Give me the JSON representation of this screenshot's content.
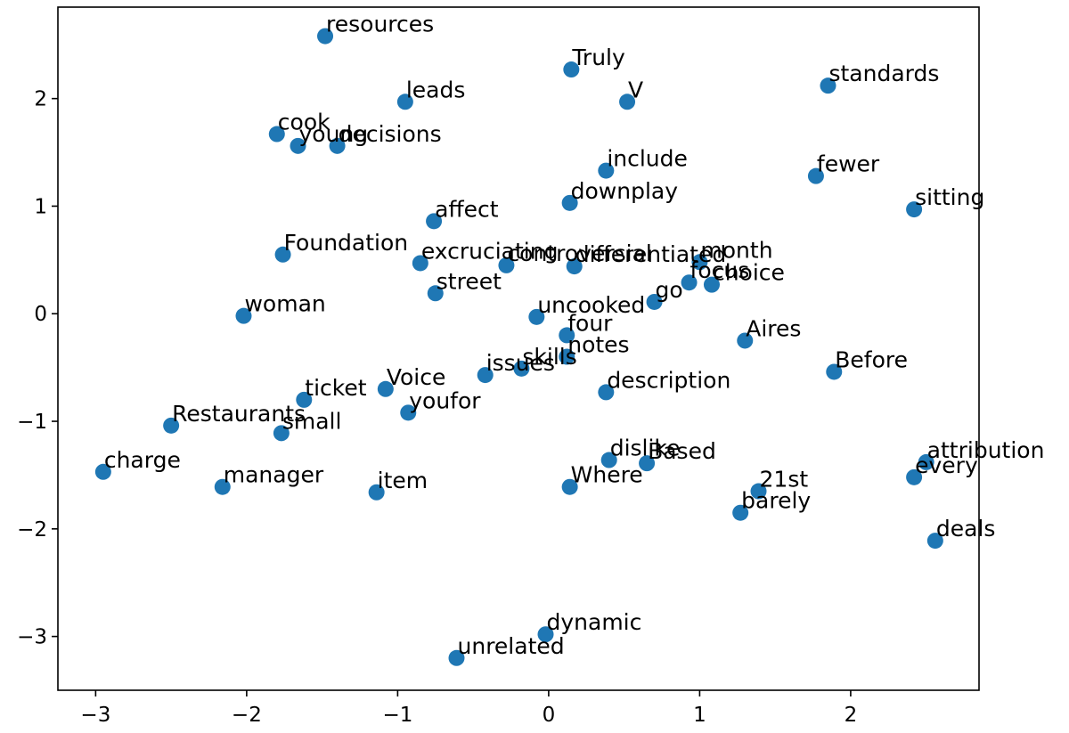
{
  "chart_data": {
    "type": "scatter",
    "title": "",
    "xlabel": "",
    "ylabel": "",
    "xlim": [
      -3.25,
      2.85
    ],
    "ylim": [
      -3.5,
      2.85
    ],
    "xticks": [
      -3,
      -2,
      -1,
      0,
      1,
      2
    ],
    "yticks": [
      2,
      1,
      0,
      -1,
      -2,
      -3
    ],
    "xtick_labels": [
      "−3",
      "−2",
      "−1",
      "0",
      "1",
      "2"
    ],
    "ytick_labels": [
      "2",
      "1",
      "0",
      "−1",
      "−2",
      "−3"
    ],
    "grid": false,
    "marker_color": "#1f77b4",
    "points": [
      {
        "label": "resources",
        "x": -1.48,
        "y": 2.58
      },
      {
        "label": "Truly",
        "x": 0.15,
        "y": 2.27
      },
      {
        "label": "standards",
        "x": 1.85,
        "y": 2.12
      },
      {
        "label": "leads",
        "x": -0.95,
        "y": 1.97
      },
      {
        "label": "V",
        "x": 0.52,
        "y": 1.97
      },
      {
        "label": "cook",
        "x": -1.8,
        "y": 1.67
      },
      {
        "label": "young",
        "x": -1.66,
        "y": 1.56
      },
      {
        "label": "decisions",
        "x": -1.4,
        "y": 1.56
      },
      {
        "label": "include",
        "x": 0.38,
        "y": 1.33
      },
      {
        "label": "fewer",
        "x": 1.77,
        "y": 1.28
      },
      {
        "label": "downplay",
        "x": 0.14,
        "y": 1.03
      },
      {
        "label": "sitting",
        "x": 2.42,
        "y": 0.97
      },
      {
        "label": "affect",
        "x": -0.76,
        "y": 0.86
      },
      {
        "label": "Foundation",
        "x": -1.76,
        "y": 0.55
      },
      {
        "label": "excruciating",
        "x": -0.85,
        "y": 0.47
      },
      {
        "label": "controversial",
        "x": -0.28,
        "y": 0.45
      },
      {
        "label": "differentiated",
        "x": 0.17,
        "y": 0.44
      },
      {
        "label": "month",
        "x": 1.0,
        "y": 0.48
      },
      {
        "label": "focus",
        "x": 0.93,
        "y": 0.29
      },
      {
        "label": "choice",
        "x": 1.08,
        "y": 0.27
      },
      {
        "label": "street",
        "x": -0.75,
        "y": 0.19
      },
      {
        "label": "go",
        "x": 0.7,
        "y": 0.11
      },
      {
        "label": "woman",
        "x": -2.02,
        "y": -0.02
      },
      {
        "label": "uncooked",
        "x": -0.08,
        "y": -0.03
      },
      {
        "label": "four",
        "x": 0.12,
        "y": -0.2
      },
      {
        "label": "Aires",
        "x": 1.3,
        "y": -0.25
      },
      {
        "label": "notes",
        "x": 0.12,
        "y": -0.4
      },
      {
        "label": "skills",
        "x": -0.18,
        "y": -0.51
      },
      {
        "label": "issues",
        "x": -0.42,
        "y": -0.57
      },
      {
        "label": "Before",
        "x": 1.89,
        "y": -0.54
      },
      {
        "label": "Voice",
        "x": -1.08,
        "y": -0.7
      },
      {
        "label": "description",
        "x": 0.38,
        "y": -0.73
      },
      {
        "label": "ticket",
        "x": -1.62,
        "y": -0.8
      },
      {
        "label": "youfor",
        "x": -0.93,
        "y": -0.92
      },
      {
        "label": "Restaurants",
        "x": -2.5,
        "y": -1.04
      },
      {
        "label": "small",
        "x": -1.77,
        "y": -1.11
      },
      {
        "label": "dislike",
        "x": 0.4,
        "y": -1.36
      },
      {
        "label": "Based",
        "x": 0.65,
        "y": -1.39
      },
      {
        "label": "attribution",
        "x": 2.5,
        "y": -1.38
      },
      {
        "label": "every",
        "x": 2.42,
        "y": -1.52
      },
      {
        "label": "charge",
        "x": -2.95,
        "y": -1.47
      },
      {
        "label": "manager",
        "x": -2.16,
        "y": -1.61
      },
      {
        "label": "item",
        "x": -1.14,
        "y": -1.66
      },
      {
        "label": "Where",
        "x": 0.14,
        "y": -1.61
      },
      {
        "label": "21st",
        "x": 1.39,
        "y": -1.65
      },
      {
        "label": "barely",
        "x": 1.27,
        "y": -1.85
      },
      {
        "label": "deals",
        "x": 2.56,
        "y": -2.11
      },
      {
        "label": "dynamic",
        "x": -0.02,
        "y": -2.98
      },
      {
        "label": "unrelated",
        "x": -0.61,
        "y": -3.2
      }
    ]
  }
}
